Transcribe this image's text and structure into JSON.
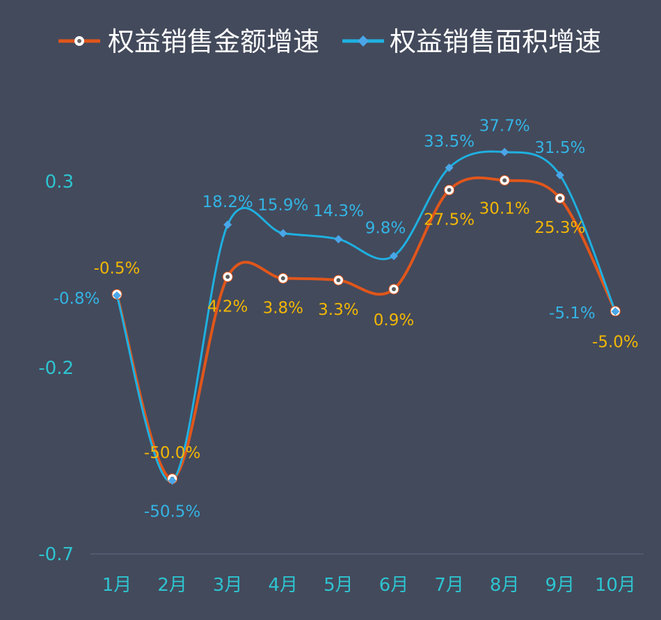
{
  "chart_data": {
    "type": "line",
    "title": "",
    "xlabel": "",
    "ylabel": "",
    "categories": [
      "1月",
      "2月",
      "3月",
      "4月",
      "5月",
      "6月",
      "7月",
      "8月",
      "9月",
      "10月"
    ],
    "yticks": [
      "0.3",
      "-0.2",
      "-0.7"
    ],
    "ylim": [
      -0.7,
      0.3
    ],
    "grid": false,
    "legend_position": "top",
    "series": [
      {
        "name": "权益销售金额增速",
        "values": [
          -0.5,
          -50.0,
          4.2,
          3.8,
          3.3,
          0.9,
          27.5,
          30.1,
          25.3,
          -5.0
        ],
        "labels": [
          "-0.5%",
          "-50.0%",
          "4.2%",
          "3.8%",
          "3.3%",
          "0.9%",
          "27.5%",
          "30.1%",
          "25.3%",
          "-5.0%"
        ],
        "color": "#e0561b",
        "label_color": "#f2b705",
        "marker": "circle"
      },
      {
        "name": "权益销售面积增速",
        "values": [
          -0.8,
          -50.5,
          18.2,
          15.9,
          14.3,
          9.8,
          33.5,
          37.7,
          31.5,
          -5.1
        ],
        "labels": [
          "-0.8%",
          "-50.5%",
          "18.2%",
          "15.9%",
          "14.3%",
          "9.8%",
          "33.5%",
          "37.7%",
          "31.5%",
          "-5.1%"
        ],
        "color": "#1fb0e0",
        "label_color": "#34b4e4",
        "marker": "diamond"
      }
    ],
    "axis_color": "#2ec4d0",
    "background": "#434a5c"
  }
}
